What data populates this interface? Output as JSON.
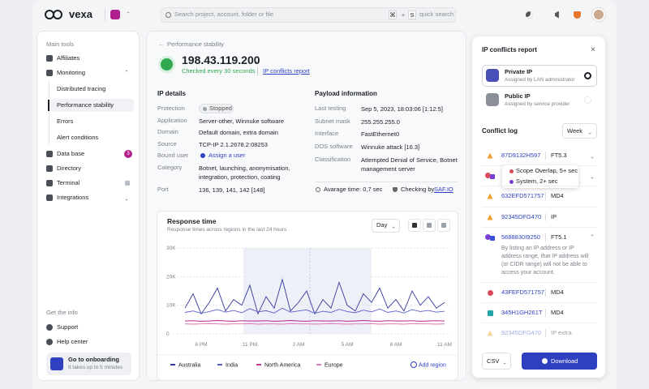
{
  "header": {
    "brand": "vexa",
    "search_placeholder": "Search project, account, folder or file",
    "shortcut": [
      "⌘",
      "+",
      "S"
    ],
    "quick_search": "quick search"
  },
  "sidebar": {
    "main_tools": "Main tools",
    "items": [
      {
        "label": "Affiliates"
      },
      {
        "label": "Monitoring",
        "children": [
          "Distributed tracing",
          "Performance stability",
          "Errors",
          "Alert conditions"
        ]
      },
      {
        "label": "Data base",
        "badge": "3"
      },
      {
        "label": "Directory"
      },
      {
        "label": "Terminal"
      },
      {
        "label": "Integrations"
      }
    ],
    "info_title": "Get the info",
    "info_items": [
      "Support",
      "Help center"
    ],
    "onboarding": {
      "title": "Go to onboarding",
      "subtitle": "It takes up to 5 minutes"
    }
  },
  "main": {
    "breadcrumb": "Performance stability",
    "ip": "198.43.119.200",
    "checked": "Checked every 30 seconds",
    "report_link": "IP conflicts report",
    "ip_details": {
      "title": "IP details",
      "rows": [
        [
          "Protection",
          "Stopped"
        ],
        [
          "Application",
          "Server-other, Winnuke software"
        ],
        [
          "Domain",
          "Default domain, extra domain"
        ],
        [
          "Source",
          "TCP-IP 2.1.2678.2:08253"
        ],
        [
          "Bound user",
          "Assign a user"
        ],
        [
          "Category",
          "Botnet, launching, anonymisation, integration, protection, coating"
        ],
        [
          "Port",
          "136, 139, 141, 142 [148]"
        ]
      ]
    },
    "payload": {
      "title": "Payload information",
      "rows": [
        [
          "Last testing",
          "Sep 5, 2023, 18:03:06 [1:12:5]"
        ],
        [
          "Subnet mask",
          "255.255.255.0"
        ],
        [
          "Interface",
          "FastEthernet0"
        ],
        [
          "DOS software",
          "Winnuke attack [16.3]"
        ],
        [
          "Classification",
          "Attempted Denial of Service, Botnet management server"
        ]
      ],
      "average_time": "Avarage time: 0,7 sec",
      "checking_by": "Checking by",
      "checker": "SAF.IO"
    }
  },
  "chart_data": {
    "type": "line",
    "title": "Response time",
    "subtitle": "Response times across regions in the last 24 hours",
    "period": "Day",
    "add_region": "Add region",
    "categories": [
      null,
      null,
      "8 PM",
      null,
      null,
      null,
      null,
      null,
      "11 PM",
      null,
      null,
      null,
      null,
      null,
      "2 AM",
      null,
      null,
      null,
      null,
      null,
      "5 AM",
      null,
      null,
      null,
      null,
      null,
      "8 AM",
      null,
      null,
      null,
      null,
      null,
      "11 AM"
    ],
    "ylim": [
      0,
      30000
    ],
    "yticks": [
      0,
      {
        "value": 10000,
        "label": "10K"
      },
      {
        "value": 20000,
        "label": "20K"
      },
      {
        "value": 30000,
        "label": "30K"
      }
    ],
    "grid": true,
    "series": [
      {
        "name": "Australia",
        "color": "#34389a",
        "values": [
          9000,
          14000,
          7000,
          11000,
          16000,
          8000,
          12000,
          10000,
          17000,
          7000,
          13000,
          9000,
          19000,
          8000,
          11000,
          15000,
          7000,
          12000,
          9000,
          18000,
          10000,
          8000,
          14000,
          11000,
          16000,
          9000,
          12000,
          8000,
          15000,
          10000,
          13000,
          9000,
          11000
        ]
      },
      {
        "name": "India",
        "color": "#5a5fc8",
        "values": [
          7500,
          8000,
          7200,
          7800,
          8500,
          7600,
          8200,
          7400,
          8800,
          7700,
          8100,
          7300,
          9000,
          7600,
          8000,
          8400,
          7200,
          7900,
          7500,
          8600,
          7800,
          7400,
          8300,
          7700,
          8700,
          7500,
          8000,
          7300,
          8500,
          7800,
          8200,
          7600,
          7900
        ]
      },
      {
        "name": "North America",
        "color": "#c2379a",
        "values": [
          4500,
          4600,
          4400,
          4500,
          4700,
          4500,
          4400,
          4600,
          4500,
          4500,
          4600,
          4400,
          4500,
          4700,
          4500,
          4400,
          4600,
          4500,
          4500,
          4600,
          4400,
          4500,
          4700,
          4500,
          4400,
          4600,
          4500,
          4500,
          4600,
          4400,
          4500,
          4600,
          4500
        ]
      },
      {
        "name": "Europe",
        "color": "#de7cc0",
        "values": [
          3500,
          3400,
          3500,
          3600,
          3500,
          3400,
          3500,
          3500,
          3600,
          3400,
          3500,
          3500,
          3400,
          3600,
          3500,
          3500,
          3400,
          3500,
          3600,
          3500,
          3400,
          3500,
          3500,
          3600,
          3400,
          3500,
          3500,
          3400,
          3600,
          3500,
          3500,
          3400,
          3500
        ]
      }
    ]
  },
  "conflicts": {
    "title": "IP conflicts report",
    "options": [
      {
        "title": "Private IP",
        "subtitle": "Assigned by LAN administrator",
        "selected": true
      },
      {
        "title": "Public IP",
        "subtitle": "Assigned by service provider",
        "selected": false
      }
    ],
    "log_title": "Conflict log",
    "period": "Week",
    "rows": [
      {
        "shape": "triangle",
        "colors": [
          "#f0a030"
        ],
        "id": "87D9132H597",
        "code": "FT5.3",
        "expandable": true
      },
      {
        "shape": "pair",
        "colors": [
          "#d94a5a",
          "#7a3fd0"
        ],
        "expandable": true,
        "tooltip": [
          {
            "text": "Scope Overlap, 5+ sec",
            "color": "#d94a5a"
          },
          {
            "text": "System, 2+ sec",
            "color": "#7a3fd0"
          }
        ]
      },
      {
        "shape": "triangle",
        "colors": [
          "#f0a030"
        ],
        "id": "632EFD571757",
        "code": "MD4"
      },
      {
        "shape": "triangle",
        "colors": [
          "#f0a030"
        ],
        "id": "92345DFG470",
        "code": "IP"
      },
      {
        "shape": "pair",
        "colors": [
          "#7a3fd0",
          "#3b4fd8"
        ],
        "id": "5688830I9250",
        "code": "FT5.1",
        "expanded": true,
        "detail": "By listing an IP address or IP address range, that IP address will (or CIDR range) will not be able to access your account."
      },
      {
        "shape": "circle",
        "colors": [
          "#d94a5a"
        ],
        "id": "43FEFD571757",
        "code": "MD4"
      },
      {
        "shape": "square",
        "colors": [
          "#1fa3a8"
        ],
        "id": "345H1GH261T",
        "code": "MD4"
      },
      {
        "shape": "triangle",
        "colors": [
          "#f0a030"
        ],
        "id": "92345DFG470",
        "code": "IP extra",
        "muted": true
      }
    ],
    "export_format": "CSV",
    "download": "Download"
  }
}
